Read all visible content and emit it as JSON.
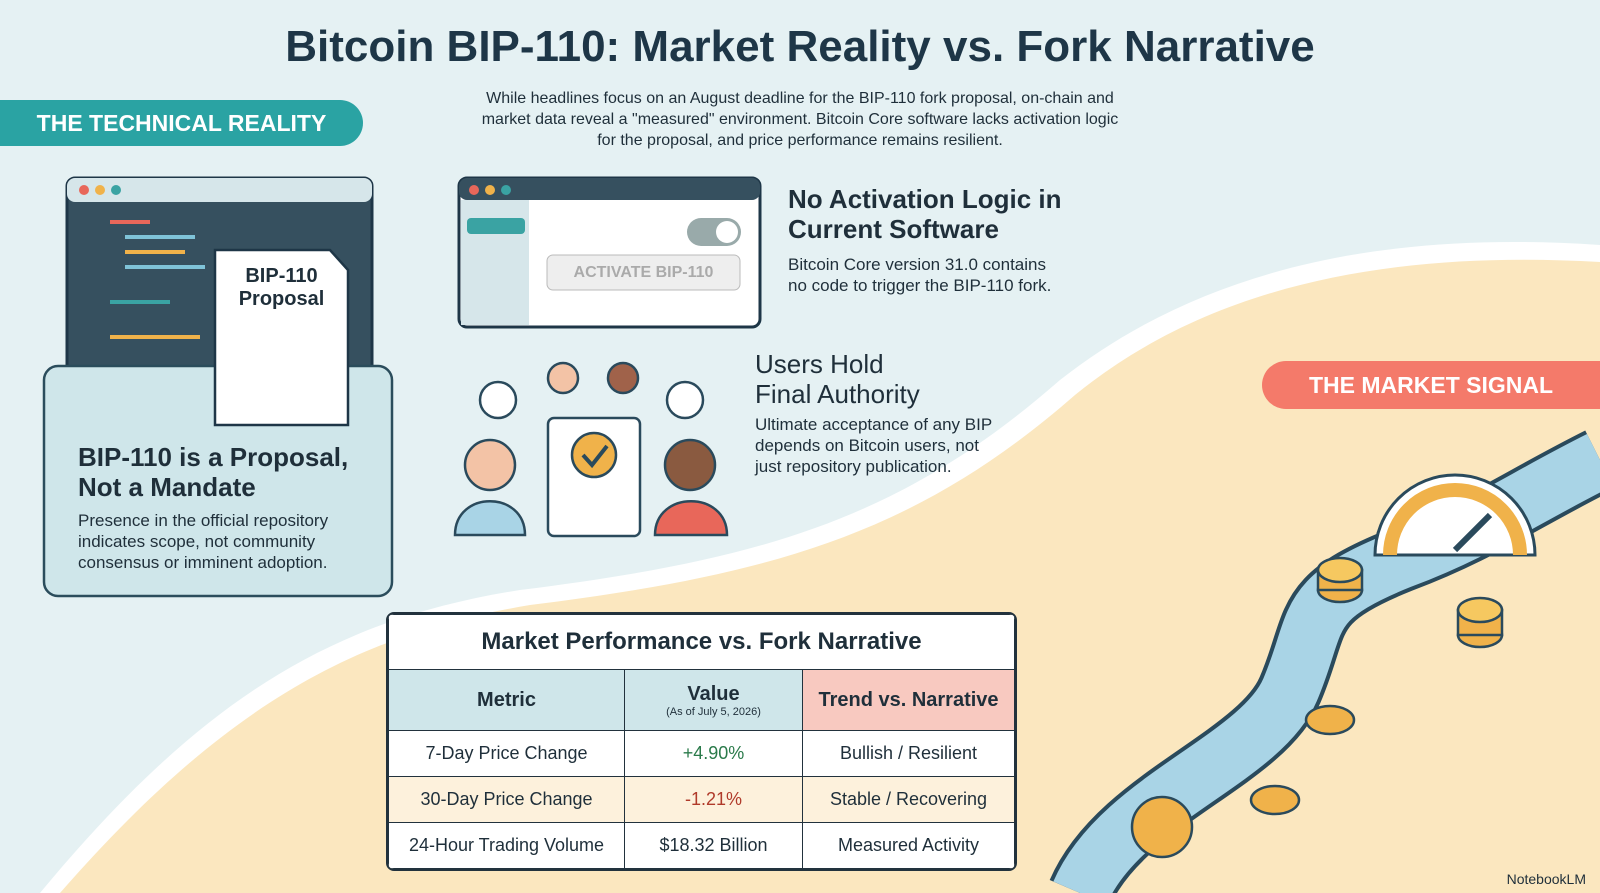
{
  "header": {
    "title": "Bitcoin BIP-110: Market Reality vs. Fork Narrative",
    "intro": [
      "While headlines focus on an August deadline for the BIP-110 fork proposal, on-chain and",
      "market data reveal a \"measured\" environment. Bitcoin Core software lacks activation logic",
      "for the proposal, and price performance remains resilient."
    ]
  },
  "technical_reality": {
    "label": "THE TECHNICAL REALITY",
    "document_label": [
      "BIP-110",
      "Proposal"
    ],
    "card_title": [
      "BIP-110 is a Proposal,",
      "Not a Mandate"
    ],
    "card_body": [
      "Presence in the official repository",
      "indicates scope, not community",
      "consensus or imminent adoption."
    ]
  },
  "points": [
    {
      "button": "ACTIVATE BIP-110",
      "title": [
        "No Activation Logic in",
        "Current Software"
      ],
      "body": [
        "Bitcoin Core version 31.0 contains",
        "no code to trigger the BIP-110 fork."
      ]
    },
    {
      "title": [
        "Users Hold",
        "Final Authority"
      ],
      "body": [
        "Ultimate acceptance of any BIP",
        "depends on Bitcoin users, not",
        "just repository publication."
      ]
    }
  ],
  "market_signal": {
    "label": "THE MARKET SIGNAL"
  },
  "table": {
    "title": "Market Performance vs. Fork Narrative",
    "headers": [
      "Metric",
      "Value",
      "Trend vs. Narrative"
    ],
    "value_note": "(As of July 5, 2026)",
    "rows": [
      [
        "7-Day Price Change",
        "+4.90%",
        "Bullish / Resilient"
      ],
      [
        "30-Day Price Change",
        "-1.21%",
        "Stable / Recovering"
      ],
      [
        "24-Hour Trading Volume",
        "$18.32 Billion",
        "Measured Activity"
      ]
    ]
  },
  "footer": {
    "brand": "NotebookLM"
  }
}
